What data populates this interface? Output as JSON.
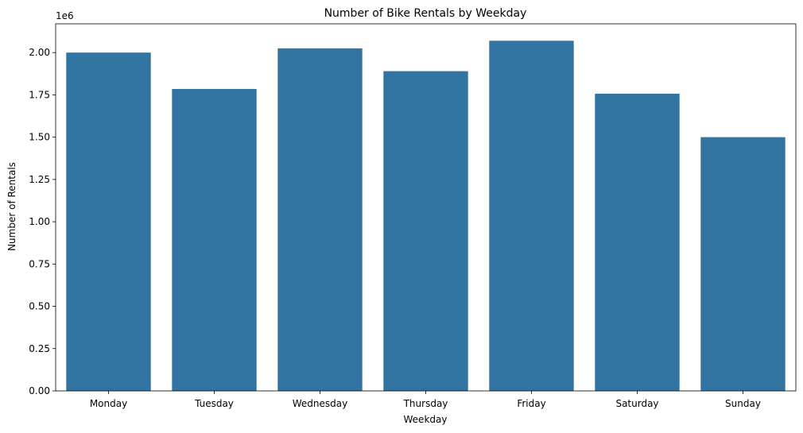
{
  "chart_data": {
    "type": "bar",
    "title": "Number of Bike Rentals by Weekday",
    "xlabel": "Weekday",
    "ylabel": "Number of Rentals",
    "y_offset_label": "1e6",
    "categories": [
      "Monday",
      "Tuesday",
      "Wednesday",
      "Thursday",
      "Friday",
      "Saturday",
      "Sunday"
    ],
    "values": [
      2000000,
      1785000,
      2025000,
      1890000,
      2070000,
      1757000,
      1500000
    ],
    "ylim": [
      0,
      2170000
    ],
    "yticks": [
      0,
      250000,
      500000,
      750000,
      1000000,
      1250000,
      1500000,
      1750000,
      2000000
    ],
    "ytick_labels": [
      "0.00",
      "0.25",
      "0.50",
      "0.75",
      "1.00",
      "1.25",
      "1.50",
      "1.75",
      "2.00"
    ],
    "bar_color": "#3274a1",
    "grid": false,
    "legend": "none"
  }
}
